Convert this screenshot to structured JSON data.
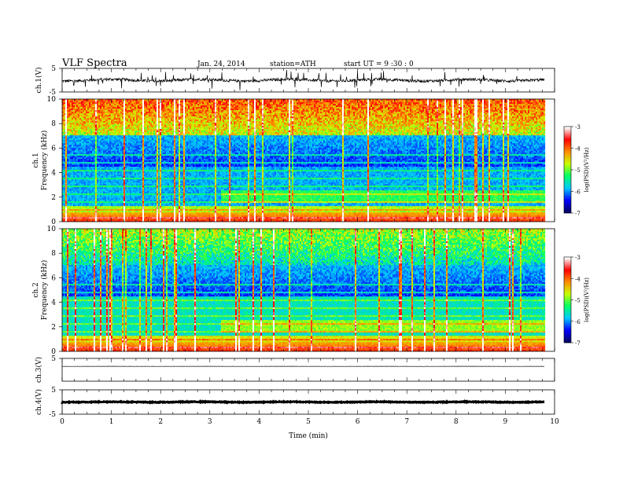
{
  "header": {
    "title": "VLF  Spectra",
    "date": "Jan. 24, 2014",
    "station": "station=ATH",
    "start": "start  UT  =   9  :30 : 0"
  },
  "chart_data": {
    "type": "heatmap",
    "x": {
      "label": "Time  (min)",
      "range": [
        0,
        10
      ],
      "ticks": [
        "0",
        "1",
        "2",
        "3",
        "4",
        "5",
        "6",
        "7",
        "8",
        "9",
        "10"
      ],
      "data_end": 9.8
    },
    "panels": [
      {
        "name": "ch.1",
        "kind": "waveform",
        "ylabel": "ch.1(V)",
        "yrange": [
          -5,
          5
        ],
        "ticks": [
          "5",
          "-5"
        ],
        "mean": 0,
        "noise_amplitude": 1.2
      },
      {
        "name": "ch.1",
        "kind": "spectrogram",
        "ylabel": "ch.1",
        "ylabel2": "Frequency  (kHz)",
        "yrange": [
          0,
          10
        ],
        "ticks": [
          "0",
          "2",
          "4",
          "6",
          "8",
          "10"
        ],
        "noise_floor_step_time": 3.2,
        "colorbar": {
          "label": "log(PSD)(V²/Hz)",
          "range": [
            -7,
            -3
          ],
          "ticks": [
            "-3",
            "-4",
            "-5",
            "-6",
            "-7"
          ]
        }
      },
      {
        "name": "ch.2",
        "kind": "spectrogram",
        "ylabel": "ch.2",
        "ylabel2": "Frequency  (kHz)",
        "yrange": [
          0,
          10
        ],
        "ticks": [
          "0",
          "2",
          "4",
          "6",
          "8",
          "10"
        ],
        "noise_floor_step_time": 3.2,
        "colorbar": {
          "label": "log(PSD)(V²/Hz)",
          "range": [
            -7,
            -3
          ],
          "ticks": [
            "-3",
            "-4",
            "-5",
            "-6",
            "-7"
          ]
        }
      },
      {
        "name": "ch.3",
        "kind": "waveform",
        "ylabel": "ch.3(V)",
        "yrange": [
          -5,
          5
        ],
        "ticks": [
          "5"
        ],
        "mean": 1.5,
        "noise_amplitude": 0.05
      },
      {
        "name": "ch.4",
        "kind": "waveform",
        "ylabel": "ch.4(V)",
        "yrange": [
          -5,
          5
        ],
        "ticks": [
          "5",
          "-5"
        ],
        "mean": 0,
        "noise_amplitude": 0.3
      }
    ],
    "colormap": [
      "#000060",
      "#0000ff",
      "#00c8ff",
      "#00ff64",
      "#c8ff00",
      "#ff8c00",
      "#ff0000",
      "#ffffff"
    ]
  }
}
